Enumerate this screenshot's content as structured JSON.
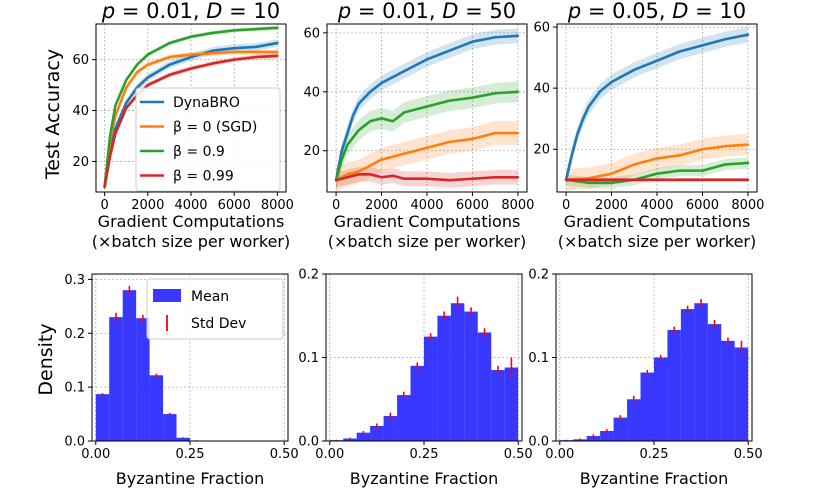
{
  "chart_data": [
    {
      "id": "acc1",
      "type": "line",
      "title": "p = 0.01, D = 10",
      "title_parts": [
        "p",
        " = 0.01, ",
        "D",
        " = 10"
      ],
      "ylabel": "Test Accuracy",
      "xlabel": "Gradient Computations",
      "xlabel2": "(×batch size per worker)",
      "xlim": [
        -400,
        8400
      ],
      "ylim": [
        8,
        74
      ],
      "xticks": [
        0,
        2000,
        4000,
        6000,
        8000
      ],
      "xtick_labels": [
        "0",
        "2000",
        "4000",
        "6000",
        "8000"
      ],
      "yticks": [
        20,
        40,
        60
      ],
      "ytick_labels": [
        "20",
        "40",
        "60"
      ],
      "grid": true,
      "legend": {
        "placement": "lower-right",
        "entries": [
          {
            "label": "DynaBRO",
            "color": "#1f77b4"
          },
          {
            "label": "β = 0 (SGD)",
            "color": "#ff7f0e"
          },
          {
            "label": "β = 0.9",
            "color": "#2ca02c"
          },
          {
            "label": "β = 0.99",
            "color": "#d62728"
          }
        ]
      },
      "series": [
        {
          "name": "DynaBRO",
          "color": "#1f77b4",
          "band": 1.5,
          "x": [
            0,
            250,
            500,
            1000,
            1500,
            2000,
            3000,
            4000,
            5000,
            6000,
            7000,
            8000
          ],
          "y": [
            10,
            26,
            33,
            43,
            49,
            53,
            58,
            61,
            63.5,
            64.5,
            65,
            66.5
          ]
        },
        {
          "name": "β = 0 (SGD)",
          "color": "#ff7f0e",
          "band": 1.0,
          "x": [
            0,
            250,
            500,
            1000,
            1500,
            2000,
            3000,
            4000,
            5000,
            6000,
            7000,
            8000
          ],
          "y": [
            10,
            28,
            38,
            49,
            55,
            58,
            61,
            62,
            62.5,
            63,
            63,
            63
          ]
        },
        {
          "name": "β = 0.9",
          "color": "#2ca02c",
          "band": 0.8,
          "x": [
            0,
            250,
            500,
            1000,
            1500,
            2000,
            3000,
            4000,
            5000,
            6000,
            7000,
            8000
          ],
          "y": [
            10,
            30,
            42,
            52,
            58,
            62,
            66.5,
            69,
            70.5,
            71.5,
            72,
            72.5
          ]
        },
        {
          "name": "β = 0.99",
          "color": "#d62728",
          "band": 1.0,
          "x": [
            0,
            250,
            500,
            1000,
            1500,
            2000,
            3000,
            4000,
            5000,
            6000,
            7000,
            8000
          ],
          "y": [
            10,
            22,
            31,
            41,
            46,
            50,
            54,
            56.5,
            58.5,
            60,
            61,
            61.5
          ]
        }
      ]
    },
    {
      "id": "acc2",
      "type": "line",
      "title": "p = 0.01, D = 50",
      "title_parts": [
        "p",
        " = 0.01, ",
        "D",
        " = 50"
      ],
      "ylabel": "",
      "xlabel": "Gradient Computations",
      "xlabel2": "(×batch size per worker)",
      "xlim": [
        -400,
        8400
      ],
      "ylim": [
        6,
        63
      ],
      "xticks": [
        0,
        2000,
        4000,
        6000,
        8000
      ],
      "xtick_labels": [
        "0",
        "2000",
        "4000",
        "6000",
        "8000"
      ],
      "yticks": [
        20,
        40,
        60
      ],
      "ytick_labels": [
        "20",
        "40",
        "60"
      ],
      "grid": true,
      "series": [
        {
          "name": "DynaBRO",
          "color": "#1f77b4",
          "band": 2.5,
          "x": [
            0,
            250,
            500,
            750,
            1000,
            1500,
            2000,
            3000,
            4000,
            5000,
            6000,
            7000,
            8000
          ],
          "y": [
            10,
            20,
            26,
            32,
            36,
            40,
            43,
            47,
            51,
            54,
            57,
            58.5,
            59
          ]
        },
        {
          "name": "β = 0 (SGD)",
          "color": "#ff7f0e",
          "band": 4.0,
          "x": [
            0,
            500,
            1000,
            1500,
            2000,
            3000,
            4000,
            5000,
            6000,
            7000,
            8000
          ],
          "y": [
            10,
            12,
            13,
            15,
            17,
            19,
            21,
            23,
            24,
            26,
            26
          ]
        },
        {
          "name": "β = 0.9",
          "color": "#2ca02c",
          "band": 3.5,
          "x": [
            0,
            250,
            500,
            1000,
            1500,
            2000,
            2500,
            3000,
            4000,
            5000,
            6000,
            7000,
            8000
          ],
          "y": [
            10,
            17,
            22,
            27,
            30,
            31,
            30,
            33,
            35,
            37,
            38,
            39.5,
            40
          ]
        },
        {
          "name": "β = 0.99",
          "color": "#d62728",
          "band": 2.5,
          "x": [
            0,
            500,
            1000,
            1500,
            2000,
            2500,
            3000,
            4000,
            5000,
            6000,
            7000,
            8000
          ],
          "y": [
            10,
            11,
            12,
            12,
            11,
            11.5,
            10.5,
            10.5,
            10,
            10.5,
            11,
            11
          ]
        }
      ]
    },
    {
      "id": "acc3",
      "type": "line",
      "title": "p = 0.05, D = 10",
      "title_parts": [
        "p",
        " = 0.05, ",
        "D",
        " = 10"
      ],
      "ylabel": "",
      "xlabel": "Gradient Computations",
      "xlabel2": "(×batch size per worker)",
      "xlim": [
        -400,
        8400
      ],
      "ylim": [
        6,
        61
      ],
      "xticks": [
        0,
        2000,
        4000,
        6000,
        8000
      ],
      "xtick_labels": [
        "0",
        "2000",
        "4000",
        "6000",
        "8000"
      ],
      "yticks": [
        20,
        40,
        60
      ],
      "ytick_labels": [
        "20",
        "40",
        "60"
      ],
      "grid": true,
      "series": [
        {
          "name": "DynaBRO",
          "color": "#1f77b4",
          "band": 2.5,
          "x": [
            0,
            250,
            500,
            750,
            1000,
            1500,
            2000,
            3000,
            4000,
            5000,
            6000,
            7000,
            8000
          ],
          "y": [
            10,
            18,
            25,
            30,
            34,
            39,
            42,
            46,
            49,
            52,
            54,
            56,
            57.5
          ]
        },
        {
          "name": "β = 0 (SGD)",
          "color": "#ff7f0e",
          "band": 3.5,
          "x": [
            0,
            1000,
            2000,
            3000,
            4000,
            5000,
            6000,
            7000,
            8000
          ],
          "y": [
            10,
            10.5,
            12,
            15,
            17,
            18,
            20,
            21,
            21.5
          ]
        },
        {
          "name": "β = 0.9",
          "color": "#2ca02c",
          "band": 1.8,
          "x": [
            0,
            1000,
            2000,
            3000,
            4000,
            5000,
            6000,
            7000,
            8000
          ],
          "y": [
            10,
            9,
            9,
            10,
            12,
            13,
            13,
            15,
            15.5
          ]
        },
        {
          "name": "β = 0.99",
          "color": "#d62728",
          "band": 0.6,
          "x": [
            0,
            2000,
            4000,
            6000,
            8000
          ],
          "y": [
            10,
            10,
            10,
            10,
            10
          ]
        }
      ]
    },
    {
      "id": "hist1",
      "type": "bar",
      "title": "",
      "ylabel": "Density",
      "xlabel": "Byzantine Fraction",
      "xlim": [
        -0.01,
        0.51
      ],
      "ylim": [
        0,
        0.31
      ],
      "xticks": [
        0,
        0.25,
        0.5
      ],
      "xtick_labels": [
        "0.00",
        "0.25",
        "0.50"
      ],
      "yticks": [
        0,
        0.1,
        0.2,
        0.3
      ],
      "ytick_labels": [
        "0.0",
        "0.1",
        "0.2",
        "0.3"
      ],
      "grid": true,
      "bin_width": 0.0357,
      "bin_edges_start": 0,
      "bar_color": "#0000ff",
      "err_color": "#ff0000",
      "values": [
        0.087,
        0.23,
        0.28,
        0.228,
        0.122,
        0.05,
        0.006,
        0.001,
        0,
        0,
        0,
        0,
        0,
        0
      ],
      "errors": [
        0.002,
        0.008,
        0.008,
        0.006,
        0.003,
        0.002,
        0.001,
        0.0005,
        0.0003,
        0.0003,
        0.0003,
        0.0003,
        0.0003,
        0.0003
      ],
      "legend": {
        "placement": "top-right",
        "entries": [
          {
            "label": "Mean",
            "kind": "patch"
          },
          {
            "label": "Std Dev",
            "kind": "errorbar"
          }
        ]
      }
    },
    {
      "id": "hist2",
      "type": "bar",
      "title": "",
      "ylabel": "",
      "xlabel": "Byzantine Fraction",
      "xlim": [
        -0.01,
        0.51
      ],
      "ylim": [
        0,
        0.2
      ],
      "xticks": [
        0,
        0.25,
        0.5
      ],
      "xtick_labels": [
        "0.00",
        "0.25",
        "0.50"
      ],
      "yticks": [
        0,
        0.1,
        0.2
      ],
      "ytick_labels": [
        "0.0",
        "0.1",
        "0.2"
      ],
      "grid": true,
      "bin_width": 0.0357,
      "bin_edges_start": 0,
      "bar_color": "#0000ff",
      "err_color": "#ff0000",
      "values": [
        0.001,
        0.003,
        0.01,
        0.018,
        0.03,
        0.055,
        0.09,
        0.125,
        0.15,
        0.165,
        0.155,
        0.13,
        0.085,
        0.088
      ],
      "errors": [
        0.0005,
        0.001,
        0.002,
        0.003,
        0.004,
        0.004,
        0.004,
        0.004,
        0.005,
        0.008,
        0.005,
        0.005,
        0.005,
        0.012
      ]
    },
    {
      "id": "hist3",
      "type": "bar",
      "title": "",
      "ylabel": "",
      "xlabel": "Byzantine Fraction",
      "xlim": [
        -0.01,
        0.51
      ],
      "ylim": [
        0,
        0.2
      ],
      "xticks": [
        0,
        0.25,
        0.5
      ],
      "xtick_labels": [
        "0.00",
        "0.25",
        "0.50"
      ],
      "yticks": [
        0,
        0.1,
        0.2
      ],
      "ytick_labels": [
        "0.0",
        "0.1",
        "0.2"
      ],
      "grid": true,
      "bin_width": 0.0357,
      "bin_edges_start": 0,
      "bar_color": "#0000ff",
      "err_color": "#ff0000",
      "values": [
        0.001,
        0.002,
        0.006,
        0.012,
        0.028,
        0.05,
        0.082,
        0.1,
        0.133,
        0.158,
        0.165,
        0.14,
        0.12,
        0.112
      ],
      "errors": [
        0.0005,
        0.001,
        0.002,
        0.002,
        0.003,
        0.004,
        0.003,
        0.003,
        0.004,
        0.004,
        0.005,
        0.005,
        0.004,
        0.008
      ]
    }
  ]
}
